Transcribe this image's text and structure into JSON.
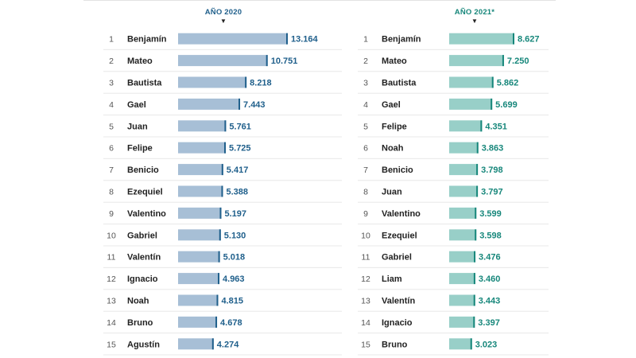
{
  "chart_data": [
    {
      "type": "bar",
      "orientation": "horizontal",
      "title": "AÑO 2020",
      "color": "#a7bfd6",
      "value_color": "#1f5f8b",
      "xlim": [
        0,
        13164
      ],
      "ranks": [
        "1",
        "2",
        "3",
        "4",
        "5",
        "6",
        "7",
        "8",
        "9",
        "10",
        "11",
        "12",
        "13",
        "14",
        "15"
      ],
      "categories": [
        "Benjamín",
        "Mateo",
        "Bautista",
        "Gael",
        "Juan",
        "Felipe",
        "Benicio",
        "Ezequiel",
        "Valentino",
        "Gabriel",
        "Valentín",
        "Ignacio",
        "Noah",
        "Bruno",
        "Agustín"
      ],
      "values": [
        13164,
        10751,
        8218,
        7443,
        5761,
        5725,
        5417,
        5388,
        5197,
        5130,
        5018,
        4963,
        4815,
        4678,
        4274
      ],
      "labels": [
        "13.164",
        "10.751",
        "8.218",
        "7.443",
        "5.761",
        "5.725",
        "5.417",
        "5.388",
        "5.197",
        "5.130",
        "5.018",
        "4.963",
        "4.815",
        "4.678",
        "4.274"
      ]
    },
    {
      "type": "bar",
      "orientation": "horizontal",
      "title": "AÑO 2021*",
      "color": "#98cfc8",
      "value_color": "#17877b",
      "xlim": [
        0,
        8627
      ],
      "ranks": [
        "1",
        "2",
        "3",
        "4",
        "5",
        "6",
        "7",
        "8",
        "9",
        "10",
        "11",
        "12",
        "13",
        "14",
        "15"
      ],
      "categories": [
        "Benjamín",
        "Mateo",
        "Bautista",
        "Gael",
        "Felipe",
        "Noah",
        "Benicio",
        "Juan",
        "Valentino",
        "Ezequiel",
        "Gabriel",
        "Liam",
        "Valentín",
        "Ignacio",
        "Bruno"
      ],
      "values": [
        8627,
        7250,
        5862,
        5699,
        4351,
        3863,
        3798,
        3797,
        3599,
        3598,
        3476,
        3460,
        3443,
        3397,
        3023
      ],
      "labels": [
        "8.627",
        "7.250",
        "5.862",
        "5.699",
        "4.351",
        "3.863",
        "3.798",
        "3.797",
        "3.599",
        "3.598",
        "3.476",
        "3.460",
        "3.443",
        "3.397",
        "3.023"
      ]
    }
  ]
}
